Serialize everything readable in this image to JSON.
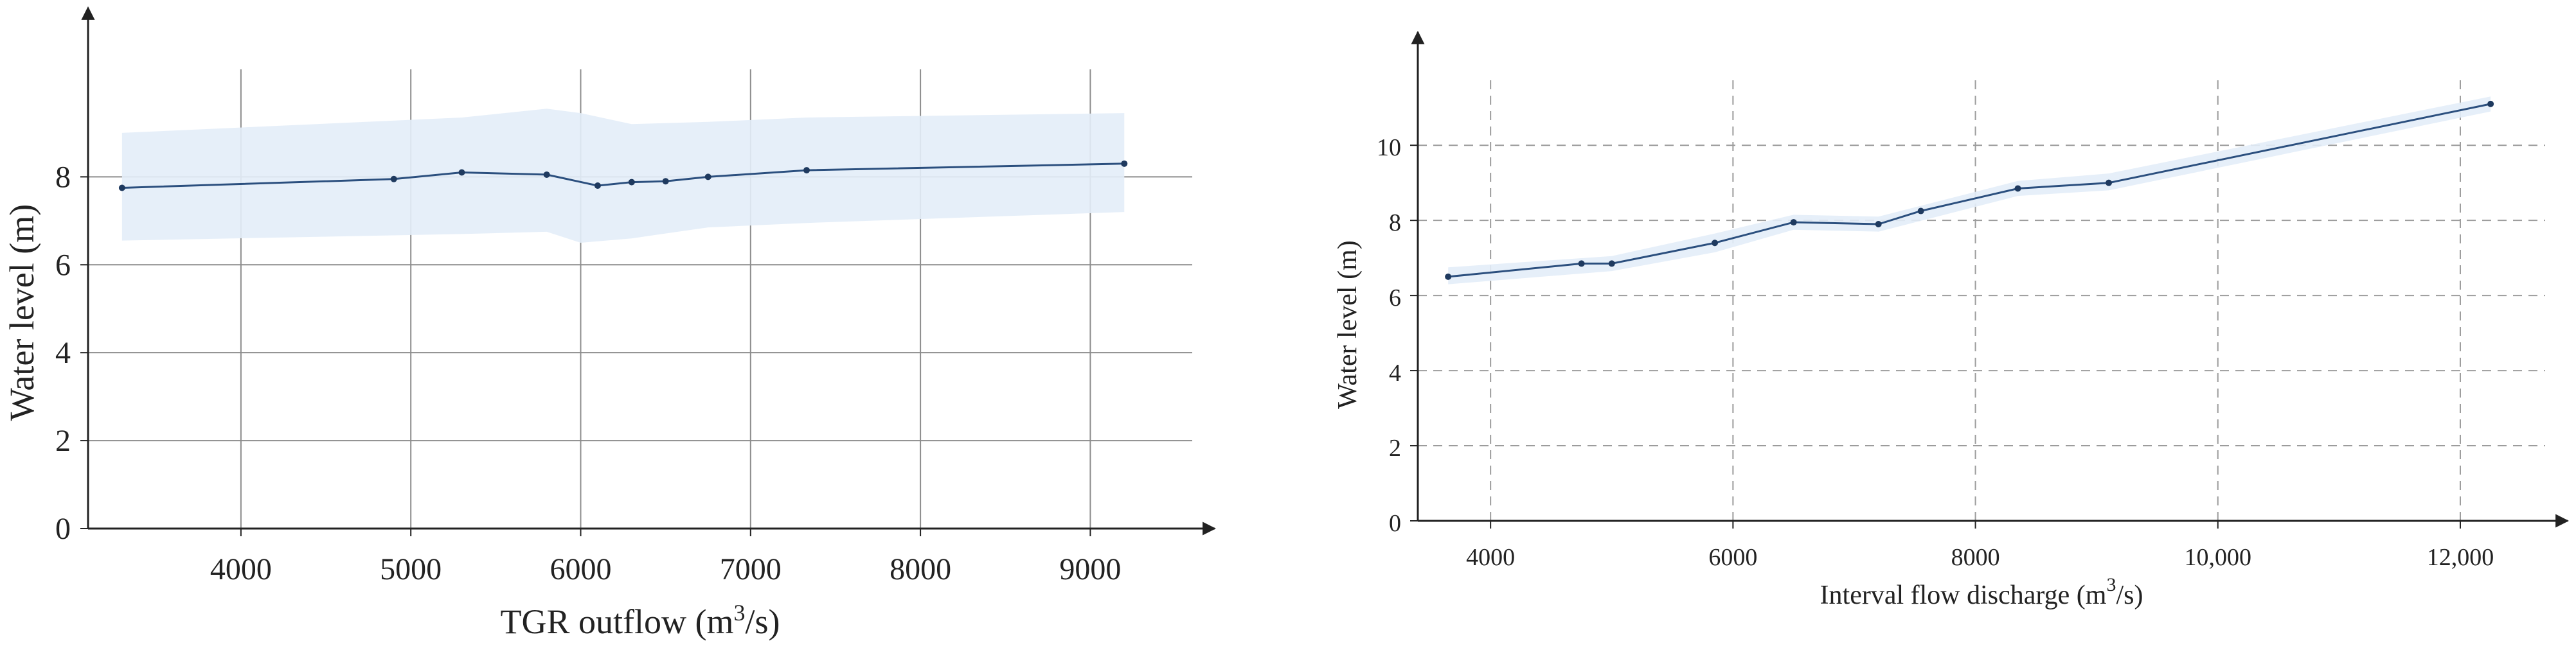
{
  "chart_data": [
    {
      "type": "line",
      "xlabel": "TGR outflow (m",
      "xlabel_sup": "3",
      "xlabel_tail": "/s)",
      "ylabel": "Water level (m)",
      "xlim": [
        3100,
        9600
      ],
      "ylim": [
        0,
        11
      ],
      "x_ticks": [
        4000,
        5000,
        6000,
        7000,
        8000,
        9000
      ],
      "x_tick_labels": [
        "4000",
        "5000",
        "6000",
        "7000",
        "8000",
        "9000"
      ],
      "y_ticks": [
        0,
        2,
        4,
        6,
        8
      ],
      "y_tick_labels": [
        "0",
        "2",
        "4",
        "6",
        "8"
      ],
      "grid": "solid",
      "line_color": "#2b4f7e",
      "band_color": "#e3edf8",
      "series": [
        {
          "x": [
            3300,
            4900,
            5300,
            5800,
            6100,
            6300,
            6500,
            6750,
            7330,
            9200
          ],
          "y": [
            7.75,
            7.95,
            8.1,
            8.05,
            7.8,
            7.88,
            7.9,
            8.0,
            8.15,
            8.3
          ],
          "band_x": [
            3300,
            5300,
            5800,
            6000,
            6300,
            6750,
            7330,
            9200
          ],
          "band_upper": [
            9.0,
            9.35,
            9.55,
            9.45,
            9.2,
            9.25,
            9.35,
            9.45
          ],
          "band_lower": [
            6.55,
            6.7,
            6.75,
            6.5,
            6.6,
            6.85,
            6.95,
            7.2
          ]
        }
      ]
    },
    {
      "type": "line",
      "xlabel": "Interval flow discharge (m",
      "xlabel_sup": "3",
      "xlabel_tail": "/s)",
      "ylabel": "Water level (m)",
      "xlim": [
        3400,
        12700
      ],
      "ylim": [
        0,
        12.5
      ],
      "x_ticks": [
        4000,
        6000,
        8000,
        10000,
        12000
      ],
      "x_tick_labels": [
        "4000",
        "6000",
        "8000",
        "10,000",
        "12,000"
      ],
      "y_ticks": [
        0,
        2,
        4,
        6,
        8,
        10
      ],
      "y_tick_labels": [
        "0",
        "2",
        "4",
        "6",
        "8",
        "10"
      ],
      "grid": "dashed",
      "line_color": "#2b4f7e",
      "band_color": "#e3edf8",
      "series": [
        {
          "x": [
            3650,
            4750,
            5000,
            5850,
            6500,
            7200,
            7550,
            8350,
            9100,
            12250
          ],
          "y": [
            6.5,
            6.85,
            6.85,
            7.4,
            7.95,
            7.9,
            8.25,
            8.85,
            9.0,
            11.1
          ],
          "band_x": [
            3650,
            5000,
            5850,
            6500,
            7200,
            8350,
            9100,
            12250
          ],
          "band_upper": [
            6.75,
            7.05,
            7.65,
            8.15,
            8.1,
            9.05,
            9.25,
            11.3
          ],
          "band_lower": [
            6.3,
            6.65,
            7.15,
            7.75,
            7.7,
            8.65,
            8.8,
            10.9
          ]
        }
      ]
    }
  ]
}
